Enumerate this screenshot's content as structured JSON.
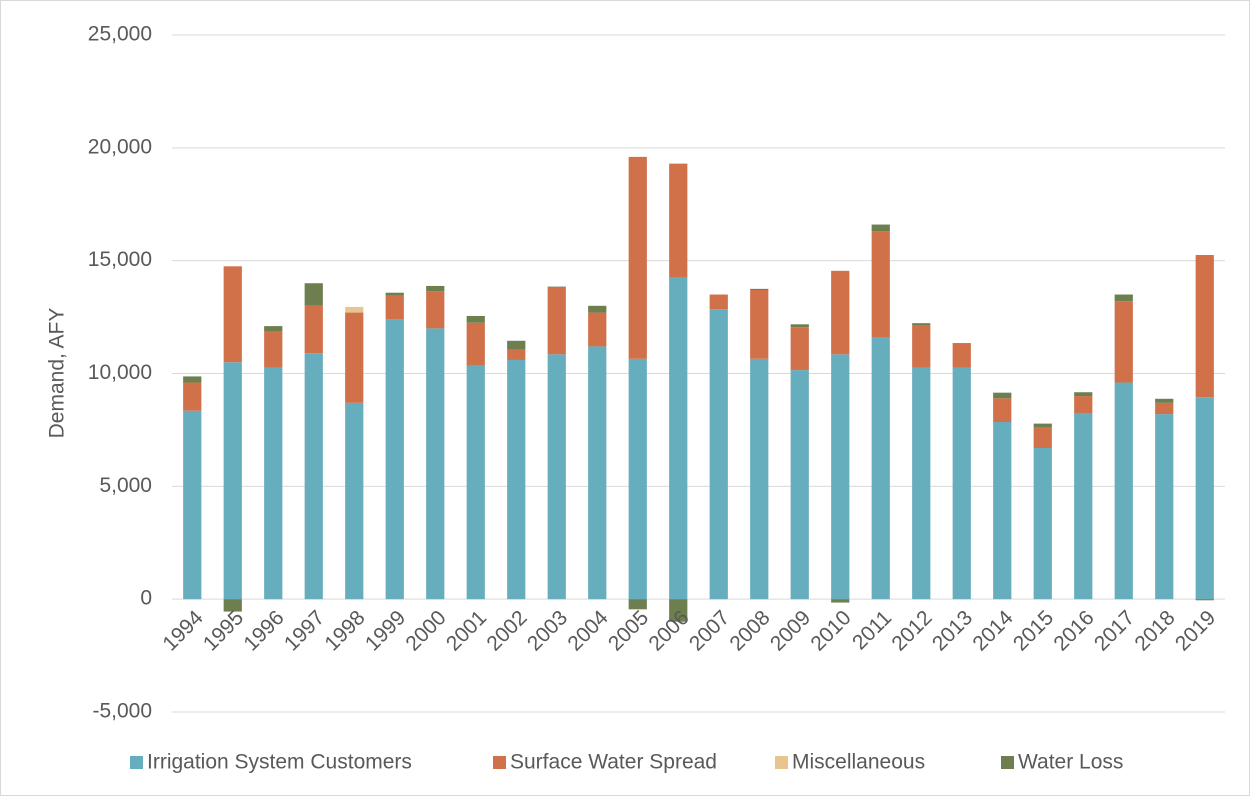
{
  "chart_data": {
    "type": "stacked-bar",
    "y_label": "Demand, AFY",
    "categories": [
      "1994",
      "1995",
      "1996",
      "1997",
      "1998",
      "1999",
      "2000",
      "2001",
      "2002",
      "2003",
      "2004",
      "2005",
      "2006",
      "2007",
      "2008",
      "2009",
      "2010",
      "2011",
      "2012",
      "2013",
      "2014",
      "2015",
      "2016",
      "2017",
      "2018",
      "2019"
    ],
    "series": [
      {
        "name": "Irrigation System Customers",
        "color": "#66adbd",
        "values": [
          8350,
          10500,
          10250,
          10900,
          8700,
          12400,
          12000,
          10350,
          10600,
          10850,
          11200,
          10650,
          14250,
          12850,
          10650,
          10150,
          10850,
          11600,
          10250,
          10250,
          7850,
          6700,
          8250,
          9600,
          8200,
          8950
        ]
      },
      {
        "name": "Surface Water Spread",
        "color": "#d0714a",
        "values": [
          1250,
          4250,
          1600,
          2100,
          4000,
          1050,
          1650,
          1900,
          450,
          2950,
          1500,
          8950,
          5050,
          650,
          3050,
          1900,
          3700,
          4700,
          1900,
          1100,
          1050,
          900,
          750,
          3600,
          500,
          6300
        ]
      },
      {
        "name": "Miscellaneous",
        "color": "#e8c48e",
        "values": [
          0,
          0,
          0,
          0,
          250,
          0,
          0,
          0,
          0,
          0,
          0,
          0,
          0,
          0,
          0,
          0,
          0,
          0,
          0,
          0,
          0,
          0,
          0,
          0,
          0,
          0
        ]
      },
      {
        "name": "Water Loss",
        "color": "#6d7f4f",
        "values": [
          270,
          -550,
          250,
          1000,
          0,
          130,
          230,
          300,
          400,
          50,
          300,
          -450,
          -1000,
          0,
          50,
          130,
          -150,
          300,
          80,
          0,
          250,
          180,
          170,
          300,
          180,
          -50
        ]
      }
    ],
    "ylim": [
      -5000,
      25000
    ],
    "yticks": [
      {
        "value": -5000,
        "label": "-5,000"
      },
      0,
      {
        "value": 5000,
        "label": "5,000"
      },
      {
        "value": 10000,
        "label": "10,000"
      },
      {
        "value": 15000,
        "label": "15,000"
      },
      {
        "value": 20000,
        "label": "20,000"
      },
      {
        "value": 25000,
        "label": "25,000"
      }
    ],
    "grid": true,
    "legend": "bottom"
  }
}
